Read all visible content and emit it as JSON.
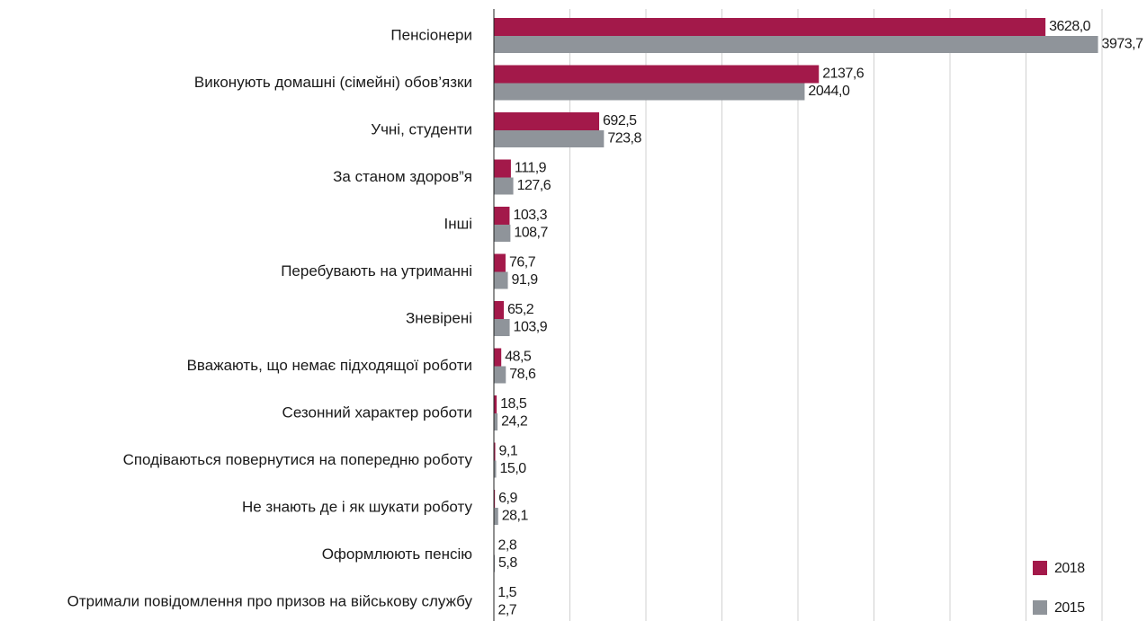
{
  "chart_data": {
    "type": "bar",
    "orientation": "horizontal",
    "categories": [
      "Пенсіонери",
      "Виконують домашні (сімейні) обов’язки",
      "Учні, студенти",
      "За станом здоров”я",
      "Інші",
      "Перебувають на утриманні",
      "Зневірені",
      "Вважають, що немає підходящої роботи",
      "Сезонний характер роботи",
      "Сподіваються повернутися на попередню роботу",
      "Не знають де і як шукати роботу",
      "Оформлюють пенсію",
      "Отримали повідомлення про призов на військову службу"
    ],
    "series": [
      {
        "name": "2018",
        "color": "#a3194a",
        "values": [
          3628.0,
          2137.6,
          692.5,
          111.9,
          103.3,
          76.7,
          65.2,
          48.5,
          18.5,
          9.1,
          6.9,
          2.8,
          1.5
        ],
        "value_labels": [
          "3628,0",
          "2137,6",
          "692,5",
          "111,9",
          "103,3",
          "76,7",
          "65,2",
          "48,5",
          "18,5",
          "9,1",
          "6,9",
          "2,8",
          "1,5"
        ]
      },
      {
        "name": "2015",
        "color": "#8f949a",
        "values": [
          3973.7,
          2044.0,
          723.8,
          127.6,
          108.7,
          91.9,
          103.9,
          78.6,
          24.2,
          15.0,
          28.1,
          5.8,
          2.7
        ],
        "value_labels": [
          "3973,7",
          "2044,0",
          "723,8",
          "127,6",
          "108,7",
          "91,9",
          "103,9",
          "78,6",
          "24,2",
          "15,0",
          "28,1",
          "5,8",
          "2,7"
        ]
      }
    ],
    "xlim": [
      0,
      4000
    ],
    "xticks": [
      0,
      500,
      1000,
      1500,
      2000,
      2500,
      3000,
      3500,
      4000
    ],
    "grid": true,
    "legend": "lower right"
  }
}
